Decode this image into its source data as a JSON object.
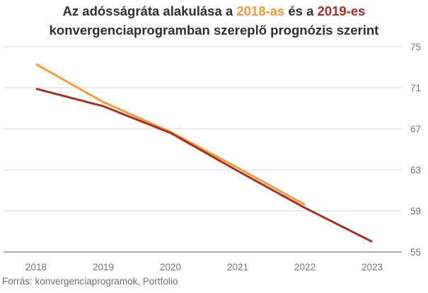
{
  "title": {
    "part1": "Az adósságráta alakulása a ",
    "highlight1": "2018-as",
    "part2": " és a ",
    "highlight2": "2019-es",
    "line2": "konvergenciaprogramban szereplő prognózis szerint"
  },
  "source": "Forrás: konvergenciaprogramok, Portfolio",
  "colors": {
    "series_2018": "#f59a3e",
    "series_2019": "#a33222",
    "grid": "#d9d9d9",
    "text": "#2f2f2f"
  },
  "chart_data": {
    "type": "line",
    "title": "Az adósságráta alakulása a 2018-as és a 2019-es konvergenciaprogramban szereplő prognózis szerint",
    "xlabel": "",
    "ylabel": "",
    "x": [
      "2018",
      "2019",
      "2020",
      "2021",
      "2022",
      "2023"
    ],
    "ylim": [
      55,
      75
    ],
    "yticks": [
      75,
      71,
      67,
      63,
      59,
      55
    ],
    "grid": true,
    "series": [
      {
        "name": "2018-as",
        "color": "#f59a3e",
        "values": [
          73.3,
          69.6,
          66.7,
          63.2,
          59.6,
          null
        ]
      },
      {
        "name": "2019-es",
        "color": "#a33222",
        "values": [
          70.9,
          69.2,
          66.6,
          62.9,
          59.3,
          56.0
        ]
      }
    ]
  }
}
